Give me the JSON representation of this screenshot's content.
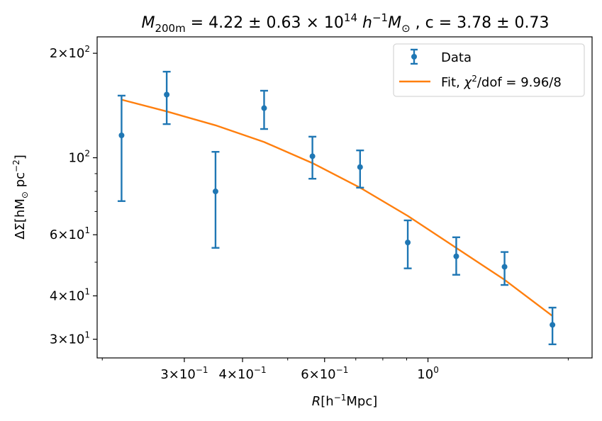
{
  "chart_data": {
    "type": "scatter",
    "title": "M200m = 4.22 ± 0.63 × 10^14 h^-1 M⊙ , c = 3.78 ± 0.73",
    "title_parts": {
      "m_sym": "M",
      "m_sub": "200m",
      "eq1": " = 4.22 ± 0.63 × 10",
      "exp": "14",
      "h_sym": " h",
      "h_exp": "−1",
      "msun": "M",
      "msun_sub": "⊙",
      "tail": " , c = 3.78 ± 0.73"
    },
    "xlabel": {
      "var": "R",
      "pre": "[h",
      "exp": "−1",
      "post": "Mpc]"
    },
    "ylabel": {
      "pre": "ΔΣ[hM",
      "sub": "⊙",
      "mid": " pc",
      "exp": "−2",
      "post": "]"
    },
    "x_scale": "log",
    "y_scale": "log",
    "xlim": [
      0.195,
      2.25
    ],
    "ylim": [
      26.5,
      223
    ],
    "x_ticks": [
      {
        "value": 0.3,
        "mantissa": "3×10",
        "exp": "−1"
      },
      {
        "value": 0.4,
        "mantissa": "4×10",
        "exp": "−1"
      },
      {
        "value": 0.6,
        "mantissa": "6×10",
        "exp": "−1"
      },
      {
        "value": 1.0,
        "mantissa": "10",
        "exp": "0"
      }
    ],
    "x_minor_ticks": [
      0.2,
      0.5,
      0.7,
      0.8,
      0.9,
      2.0
    ],
    "y_ticks": [
      {
        "value": 30,
        "mantissa": "3×10",
        "exp": "1"
      },
      {
        "value": 40,
        "mantissa": "4×10",
        "exp": "1"
      },
      {
        "value": 60,
        "mantissa": "6×10",
        "exp": "1"
      },
      {
        "value": 100,
        "mantissa": "10",
        "exp": "2"
      },
      {
        "value": 200,
        "mantissa": "2×10",
        "exp": "2"
      }
    ],
    "y_minor_ticks": [
      50,
      70,
      80,
      90
    ],
    "grid": false,
    "legend_position": "top-right",
    "series": [
      {
        "name": "Data",
        "kind": "errorbar",
        "color": "#1f77b4",
        "points": [
          {
            "x": 0.22,
            "y": 116,
            "yerr_low": 75,
            "yerr_high": 151
          },
          {
            "x": 0.275,
            "y": 152,
            "yerr_low": 125,
            "yerr_high": 177
          },
          {
            "x": 0.35,
            "y": 80,
            "yerr_low": 55,
            "yerr_high": 104
          },
          {
            "x": 0.445,
            "y": 139,
            "yerr_low": 121,
            "yerr_high": 156
          },
          {
            "x": 0.565,
            "y": 101,
            "yerr_low": 87,
            "yerr_high": 115
          },
          {
            "x": 0.715,
            "y": 94,
            "yerr_low": 82,
            "yerr_high": 105
          },
          {
            "x": 0.905,
            "y": 57,
            "yerr_low": 48,
            "yerr_high": 66
          },
          {
            "x": 1.15,
            "y": 52,
            "yerr_low": 46,
            "yerr_high": 59
          },
          {
            "x": 1.46,
            "y": 48.5,
            "yerr_low": 43,
            "yerr_high": 53.5
          },
          {
            "x": 1.85,
            "y": 33,
            "yerr_low": 29,
            "yerr_high": 37
          }
        ]
      },
      {
        "name": "Fit, χ²/dof = 9.96/8",
        "legend_parts": {
          "pre": "Fit, ",
          "chi": "χ",
          "sq": "2",
          "post": "/dof = 9.96/8"
        },
        "kind": "line",
        "color": "#ff7f0e",
        "points": [
          {
            "x": 0.22,
            "y": 147
          },
          {
            "x": 0.275,
            "y": 136
          },
          {
            "x": 0.35,
            "y": 124
          },
          {
            "x": 0.445,
            "y": 111
          },
          {
            "x": 0.565,
            "y": 96.5
          },
          {
            "x": 0.715,
            "y": 82
          },
          {
            "x": 0.905,
            "y": 68
          },
          {
            "x": 1.15,
            "y": 55
          },
          {
            "x": 1.46,
            "y": 44.5
          },
          {
            "x": 1.85,
            "y": 35
          }
        ]
      }
    ]
  }
}
